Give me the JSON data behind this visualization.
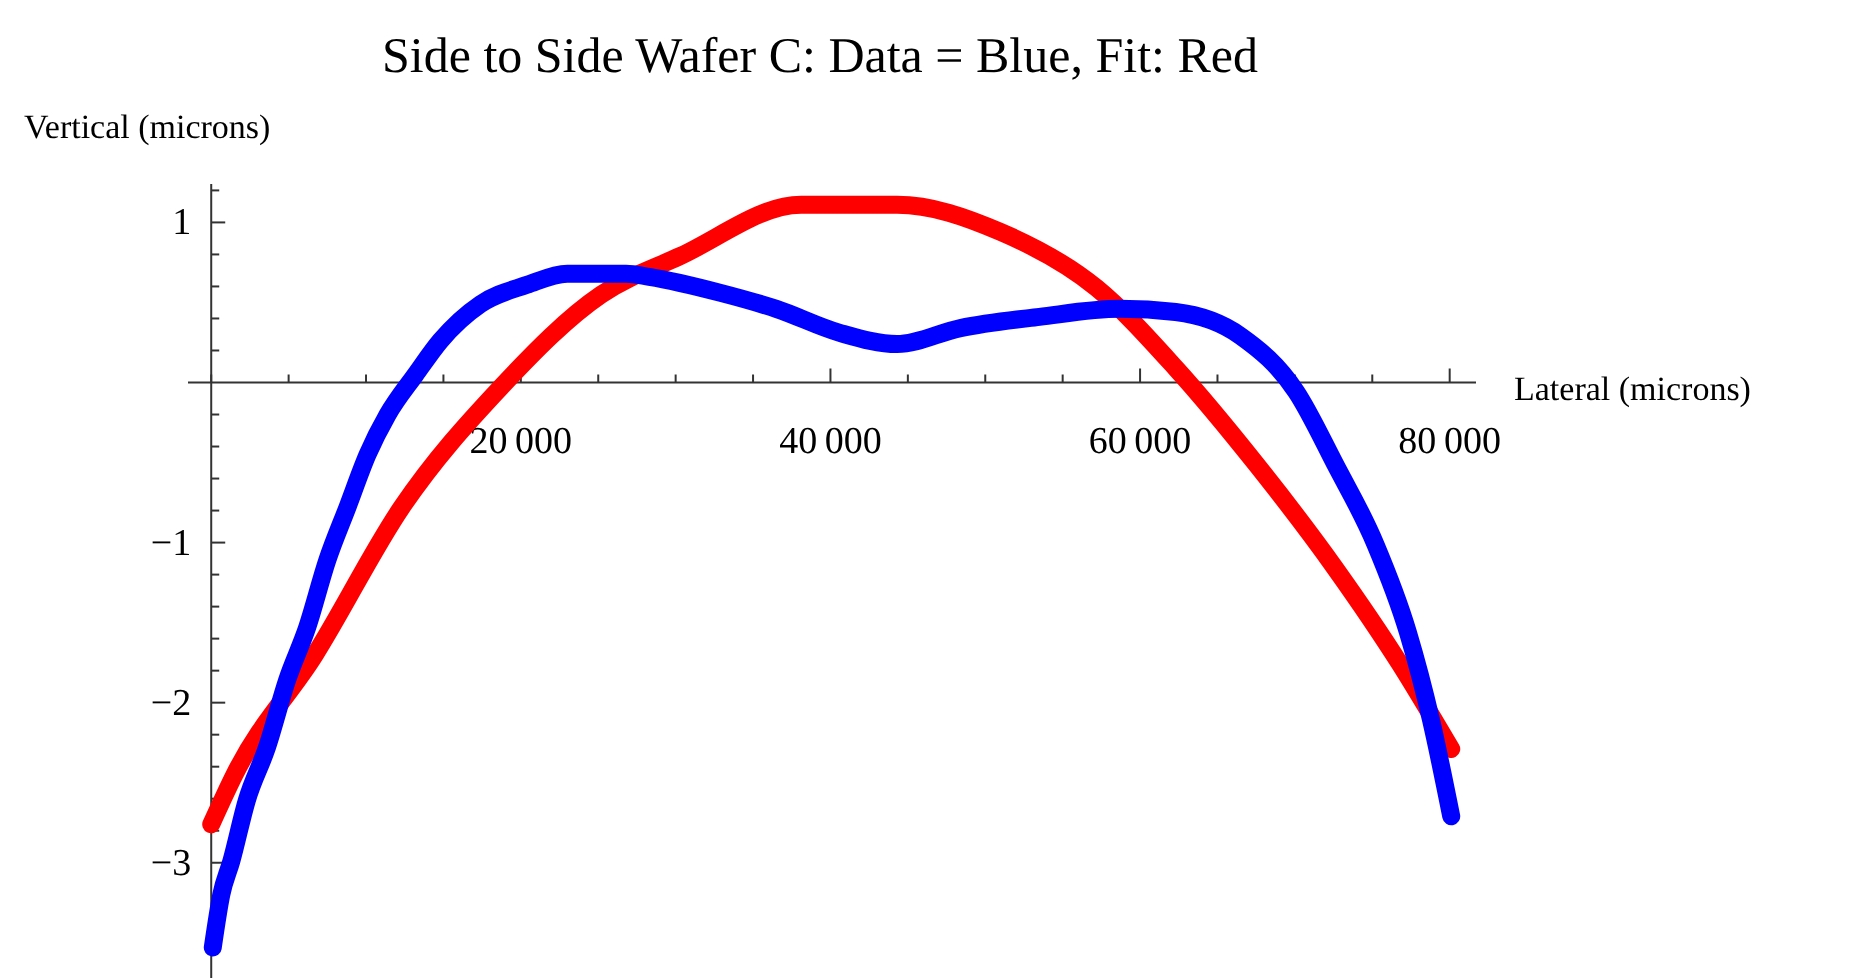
{
  "chart_data": {
    "type": "line",
    "title": "Side to Side Wafer C: Data = Blue, Fit: Red",
    "xlabel": "Lateral (microns)",
    "ylabel": "Vertical (microns)",
    "xlim": [
      -1500,
      81700
    ],
    "ylim": [
      -3.72,
      1.24
    ],
    "xticks": [
      {
        "value": 0,
        "label": null
      },
      {
        "value": 5000,
        "label": null
      },
      {
        "value": 10000,
        "label": null
      },
      {
        "value": 15000,
        "label": null
      },
      20000,
      {
        "value": 25000,
        "label": null
      },
      {
        "value": 30000,
        "label": null
      },
      {
        "value": 35000,
        "label": null
      },
      40000,
      {
        "value": 45000,
        "label": null
      },
      {
        "value": 50000,
        "label": null
      },
      {
        "value": 55000,
        "label": null
      },
      60000,
      {
        "value": 65000,
        "label": null
      },
      {
        "value": 70000,
        "label": null
      },
      {
        "value": 75000,
        "label": null
      },
      80000
    ],
    "yticks": [
      -3,
      {
        "value": -2.8,
        "label": null
      },
      {
        "value": -2.6,
        "label": null
      },
      {
        "value": -2.4,
        "label": null
      },
      {
        "value": -2.2,
        "label": null
      },
      -2,
      {
        "value": -1.8,
        "label": null
      },
      {
        "value": -1.6,
        "label": null
      },
      {
        "value": -1.4,
        "label": null
      },
      {
        "value": -1.2,
        "label": null
      },
      -1,
      {
        "value": -0.8,
        "label": null
      },
      {
        "value": -0.6,
        "label": null
      },
      {
        "value": -0.4,
        "label": null
      },
      {
        "value": -0.2,
        "label": null
      },
      {
        "value": 0.2,
        "label": null
      },
      {
        "value": 0.4,
        "label": null
      },
      {
        "value": 0.6,
        "label": null
      },
      {
        "value": 0.8,
        "label": null
      },
      1,
      {
        "value": 1.2,
        "label": null
      }
    ],
    "grid": false,
    "line_style": "solid",
    "series": [
      {
        "color": "#ff0000",
        "x": [
          0,
          1500,
          6700,
          12300,
          18700,
          25200,
          30300,
          38100,
          44300,
          51000,
          57200,
          62300,
          67500,
          72600,
          76800,
          80100
        ],
        "values": [
          -2.76,
          -2.45,
          -1.7,
          -0.78,
          -0.03,
          0.55,
          0.79,
          1.11,
          1.11,
          0.94,
          0.59,
          0.09,
          -0.51,
          -1.16,
          -1.76,
          -2.29
        ]
      },
      {
        "color": "#0000ff",
        "x": [
          100,
          650,
          1300,
          2300,
          3600,
          4900,
          6200,
          7500,
          8800,
          10100,
          11400,
          13200,
          14800,
          17400,
          20400,
          23000,
          26800,
          28300,
          32900,
          36500,
          40600,
          44300,
          48400,
          53500,
          58700,
          62300,
          66500,
          70100,
          72600,
          75200,
          77300,
          78800,
          80100
        ],
        "values": [
          -3.53,
          -3.2,
          -2.99,
          -2.61,
          -2.28,
          -1.86,
          -1.53,
          -1.11,
          -0.78,
          -0.45,
          -0.2,
          0.05,
          0.26,
          0.49,
          0.61,
          0.68,
          0.68,
          0.66,
          0.56,
          0.46,
          0.31,
          0.24,
          0.34,
          0.41,
          0.46,
          0.44,
          0.29,
          -0.06,
          -0.51,
          -1.01,
          -1.56,
          -2.11,
          -2.71
        ]
      }
    ]
  }
}
